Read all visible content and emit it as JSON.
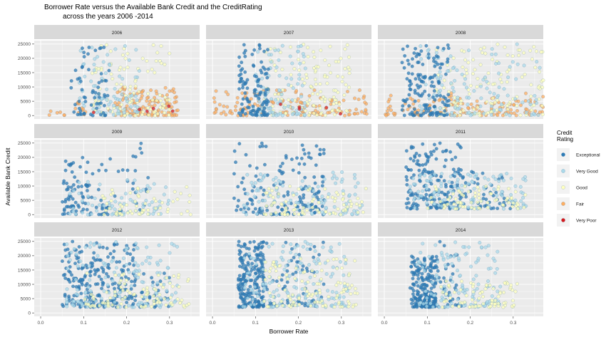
{
  "chart_data": {
    "type": "scatter",
    "title_line1": "Borrower Rate versus the Available Bank Credit and the CreditRating",
    "title_line2": "across the years 2006 -2014",
    "xlabel": "Borrower Rate",
    "ylabel": "Available Bank  Credit",
    "xlim": [
      -0.015,
      0.37
    ],
    "ylim": [
      -1200,
      26200
    ],
    "x_ticks": [
      0.0,
      0.1,
      0.2,
      0.3
    ],
    "x_tick_labels": [
      "0.0",
      "0.1",
      "0.2",
      "0.3"
    ],
    "y_ticks": [
      0,
      5000,
      10000,
      15000,
      20000,
      25000
    ],
    "y_tick_labels": [
      "0",
      "5000",
      "10000",
      "15000",
      "20000",
      "25000"
    ],
    "grid": true,
    "legend": {
      "title_line1": "Credit",
      "title_line2": "Rating",
      "position": "right",
      "items": [
        {
          "label": "Exceptional",
          "color": "#2c7bb6"
        },
        {
          "label": "Very Good",
          "color": "#abd9e9"
        },
        {
          "label": "Good",
          "color": "#ffffbf"
        },
        {
          "label": "Fair",
          "color": "#fdae61"
        },
        {
          "label": "Very Poor",
          "color": "#d7191c"
        }
      ]
    },
    "colors": {
      "panel_bg": "#ebebeb",
      "strip_bg": "#d9d9d9",
      "grid": "#ffffff"
    },
    "panels": [
      {
        "label": "2006",
        "x_range": [
          0.0,
          0.32
        ],
        "clusters": [
          {
            "category": 3,
            "x_range": [
              0.0,
              0.16
            ],
            "y_range": [
              0,
              5000
            ],
            "count": 20
          },
          {
            "category": 3,
            "x_range": [
              0.17,
              0.32
            ],
            "y_range": [
              0,
              10000
            ],
            "count": 120
          },
          {
            "category": 2,
            "x_range": [
              0.12,
              0.3
            ],
            "y_range": [
              0,
              25000
            ],
            "count": 110
          },
          {
            "category": 1,
            "x_range": [
              0.09,
              0.23
            ],
            "y_range": [
              0,
              25000
            ],
            "count": 80
          },
          {
            "category": 0,
            "x_range": [
              0.07,
              0.16
            ],
            "y_range": [
              0,
              25000
            ],
            "count": 60
          },
          {
            "category": 4,
            "x_range": [
              0.11,
              0.31
            ],
            "y_range": [
              500,
              4000
            ],
            "count": 6
          }
        ]
      },
      {
        "label": "2007",
        "x_range": [
          0.0,
          0.36
        ],
        "clusters": [
          {
            "category": 3,
            "x_range": [
              0.0,
              0.36
            ],
            "y_range": [
              0,
              9000
            ],
            "count": 140
          },
          {
            "category": 2,
            "x_range": [
              0.12,
              0.32
            ],
            "y_range": [
              0,
              25000
            ],
            "count": 130
          },
          {
            "category": 1,
            "x_range": [
              0.09,
              0.22
            ],
            "y_range": [
              0,
              25000
            ],
            "count": 100
          },
          {
            "category": 0,
            "x_range": [
              0.06,
              0.13
            ],
            "y_range": [
              0,
              25000
            ],
            "count": 110
          },
          {
            "category": 4,
            "x_range": [
              0.12,
              0.3
            ],
            "y_range": [
              500,
              4000
            ],
            "count": 5
          }
        ]
      },
      {
        "label": "2008",
        "x_range": [
          0.0,
          0.37
        ],
        "clusters": [
          {
            "category": 3,
            "x_range": [
              0.0,
              0.37
            ],
            "y_range": [
              0,
              8000
            ],
            "count": 130
          },
          {
            "category": 2,
            "x_range": [
              0.12,
              0.37
            ],
            "y_range": [
              0,
              25000
            ],
            "count": 130
          },
          {
            "category": 1,
            "x_range": [
              0.08,
              0.37
            ],
            "y_range": [
              0,
              25000
            ],
            "count": 120
          },
          {
            "category": 0,
            "x_range": [
              0.04,
              0.15
            ],
            "y_range": [
              0,
              25000
            ],
            "count": 140
          }
        ]
      },
      {
        "label": "2009",
        "x_range": [
          0.04,
          0.35
        ],
        "clusters": [
          {
            "category": 0,
            "x_range": [
              0.05,
              0.16
            ],
            "y_range": [
              0,
              20000
            ],
            "count": 90
          },
          {
            "category": 0,
            "x_range": [
              0.16,
              0.26
            ],
            "y_range": [
              0,
              25000
            ],
            "count": 25
          },
          {
            "category": 1,
            "x_range": [
              0.06,
              0.3
            ],
            "y_range": [
              0,
              14000
            ],
            "count": 70
          },
          {
            "category": 2,
            "x_range": [
              0.14,
              0.35
            ],
            "y_range": [
              0,
              11000
            ],
            "count": 60
          }
        ]
      },
      {
        "label": "2010",
        "x_range": [
          0.04,
          0.36
        ],
        "clusters": [
          {
            "category": 0,
            "x_range": [
              0.05,
              0.26
            ],
            "y_range": [
              0,
              25000
            ],
            "count": 150
          },
          {
            "category": 1,
            "x_range": [
              0.07,
              0.35
            ],
            "y_range": [
              0,
              15000
            ],
            "count": 110
          },
          {
            "category": 2,
            "x_range": [
              0.12,
              0.36
            ],
            "y_range": [
              0,
              10000
            ],
            "count": 80
          }
        ]
      },
      {
        "label": "2011",
        "x_range": [
          0.05,
          0.33
        ],
        "clusters": [
          {
            "category": 0,
            "x_range": [
              0.05,
              0.18
            ],
            "y_range": [
              2000,
              25000
            ],
            "count": 170
          },
          {
            "category": 0,
            "x_range": [
              0.18,
              0.3
            ],
            "y_range": [
              2000,
              15000
            ],
            "count": 50
          },
          {
            "category": 1,
            "x_range": [
              0.06,
              0.33
            ],
            "y_range": [
              2000,
              15000
            ],
            "count": 130
          },
          {
            "category": 2,
            "x_range": [
              0.1,
              0.33
            ],
            "y_range": [
              2000,
              10000
            ],
            "count": 70
          }
        ]
      },
      {
        "label": "2012",
        "x_range": [
          0.05,
          0.35
        ],
        "clusters": [
          {
            "category": 0,
            "x_range": [
              0.05,
              0.22
            ],
            "y_range": [
              2000,
              25000
            ],
            "count": 230
          },
          {
            "category": 0,
            "x_range": [
              0.22,
              0.3
            ],
            "y_range": [
              2000,
              15000
            ],
            "count": 30
          },
          {
            "category": 1,
            "x_range": [
              0.06,
              0.32
            ],
            "y_range": [
              2000,
              25000
            ],
            "count": 150
          },
          {
            "category": 2,
            "x_range": [
              0.1,
              0.35
            ],
            "y_range": [
              2000,
              15000
            ],
            "count": 90
          }
        ]
      },
      {
        "label": "2013",
        "x_range": [
          0.06,
          0.34
        ],
        "clusters": [
          {
            "category": 0,
            "x_range": [
              0.06,
              0.12
            ],
            "y_range": [
              2000,
              25000
            ],
            "count": 210
          },
          {
            "category": 0,
            "x_range": [
              0.12,
              0.26
            ],
            "y_range": [
              2000,
              25000
            ],
            "count": 60
          },
          {
            "category": 1,
            "x_range": [
              0.07,
              0.32
            ],
            "y_range": [
              2000,
              25000
            ],
            "count": 170
          },
          {
            "category": 2,
            "x_range": [
              0.12,
              0.34
            ],
            "y_range": [
              2000,
              20000
            ],
            "count": 110
          }
        ]
      },
      {
        "label": "2014",
        "x_range": [
          0.06,
          0.31
        ],
        "clusters": [
          {
            "category": 0,
            "x_range": [
              0.06,
              0.12
            ],
            "y_range": [
              2000,
              20000
            ],
            "count": 200
          },
          {
            "category": 0,
            "x_range": [
              0.12,
              0.18
            ],
            "y_range": [
              2000,
              25000
            ],
            "count": 40
          },
          {
            "category": 1,
            "x_range": [
              0.07,
              0.27
            ],
            "y_range": [
              2000,
              25000
            ],
            "count": 140
          },
          {
            "category": 2,
            "x_range": [
              0.13,
              0.31
            ],
            "y_range": [
              2000,
              12000
            ],
            "count": 80
          }
        ]
      }
    ]
  }
}
